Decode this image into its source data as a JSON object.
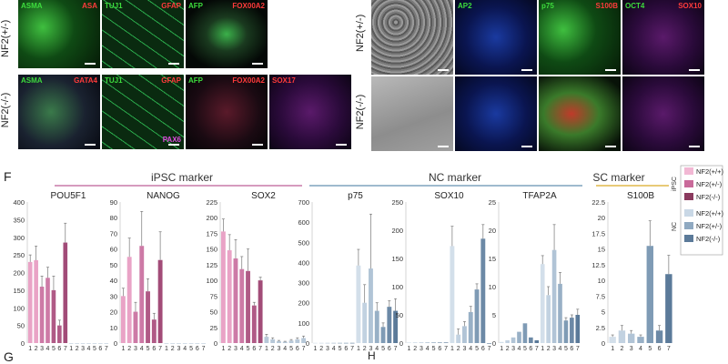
{
  "row_labels": {
    "left_top": "NF2(+/-)",
    "left_bottom": "NF2(-/-)",
    "right_top": "NF2(+/-)",
    "right_bottom": "NF2(-/-)"
  },
  "panel_letters": {
    "f": "F",
    "g": "G",
    "h": "H"
  },
  "microscopy": {
    "left_top": [
      {
        "labels": [
          {
            "text": "ASMA",
            "color": "#3ddc3d"
          },
          {
            "text": "ASA",
            "color": "#ff3b3b"
          }
        ],
        "tone": "green"
      },
      {
        "labels": [
          {
            "text": "TUJ1",
            "color": "#3ddc3d"
          },
          {
            "text": "GFAP",
            "color": "#ff3b3b"
          }
        ],
        "tone": "green-net"
      },
      {
        "labels": [
          {
            "text": "AFP",
            "color": "#3ddc3d"
          },
          {
            "text": "FOX00A2",
            "color": "#ff3b3b"
          }
        ],
        "tone": "dark-green"
      }
    ],
    "left_bottom": [
      {
        "labels": [
          {
            "text": "ASMA",
            "color": "#3ddc3d"
          },
          {
            "text": "GATA4",
            "color": "#ff3b3b"
          }
        ],
        "tone": "mixed"
      },
      {
        "labels": [
          {
            "text": "TUJ1",
            "color": "#3ddc3d"
          },
          {
            "text": "GFAP",
            "color": "#ff3b3b"
          },
          {
            "text": "PAX6",
            "color": "#e04ce0"
          }
        ],
        "tone": "green-net"
      },
      {
        "labels": [
          {
            "text": "AFP",
            "color": "#3ddc3d"
          },
          {
            "text": "FOX00A2",
            "color": "#ff3b3b"
          }
        ],
        "tone": "dark-red"
      },
      {
        "labels": [
          {
            "text": "SOX17",
            "color": "#ff3b3b"
          }
        ],
        "tone": "purple"
      }
    ],
    "right_top": [
      {
        "labels": [],
        "tone": "phase"
      },
      {
        "labels": [
          {
            "text": "AP2",
            "color": "#3ddc3d"
          }
        ],
        "tone": "blue-cyan"
      },
      {
        "labels": [
          {
            "text": "p75",
            "color": "#3ddc3d"
          },
          {
            "text": "S100B",
            "color": "#ff3b3b"
          }
        ],
        "tone": "green"
      },
      {
        "labels": [
          {
            "text": "OCT4",
            "color": "#3ddc3d"
          },
          {
            "text": "SOX10",
            "color": "#ff3b3b"
          }
        ],
        "tone": "purple"
      }
    ],
    "right_bottom": [
      {
        "labels": [],
        "tone": "phase2"
      },
      {
        "labels": [],
        "tone": "blue-cyan"
      },
      {
        "labels": [],
        "tone": "red-green"
      },
      {
        "labels": [],
        "tone": "purple"
      }
    ]
  },
  "group_headers": [
    {
      "text": "iPSC marker",
      "color": "#c97aa8"
    },
    {
      "text": "NC marker",
      "color": "#7fa3bd"
    },
    {
      "text": "SC marker",
      "color": "#e0b94a"
    }
  ],
  "legend": {
    "group_ipsc": "iPSC",
    "group_nc": "NC",
    "entries": [
      {
        "label": "NF2(+/+)",
        "color": "#f2b8d4"
      },
      {
        "label": "NF2(+/-)",
        "color": "#c96a9a"
      },
      {
        "label": "NF2(-/-)",
        "color": "#8a3a5e"
      },
      {
        "label": "NF2(+/+)",
        "color": "#c9d8e6"
      },
      {
        "label": "NF2(+/-)",
        "color": "#8fa9c1"
      },
      {
        "label": "NF2(-/-)",
        "color": "#5b7a99"
      }
    ]
  },
  "chart_data": [
    {
      "type": "bar",
      "title": "POU5F1",
      "categories": [
        "1",
        "2",
        "3",
        "4",
        "5",
        "6",
        "7"
      ],
      "ylim": [
        0,
        400
      ],
      "yticks": [
        0,
        50,
        100,
        150,
        200,
        250,
        300,
        350,
        400
      ],
      "values": [
        230,
        235,
        160,
        185,
        150,
        50,
        285
      ],
      "errors": [
        20,
        40,
        30,
        30,
        40,
        15,
        55
      ],
      "colors": [
        "#e9a3c6",
        "#e9a3c6",
        "#cd7aa6",
        "#cd7aa6",
        "#b05a86",
        "#b05a86",
        "#a24c78"
      ],
      "zero_tail": [
        "1",
        "2",
        "3",
        "4",
        "5",
        "6",
        "7"
      ]
    },
    {
      "type": "bar",
      "title": "NANOG",
      "categories": [
        "1",
        "2",
        "3",
        "4",
        "5",
        "6",
        "7"
      ],
      "ylim": [
        0,
        90
      ],
      "yticks": [
        0,
        10,
        20,
        30,
        40,
        50,
        60,
        70,
        80,
        90
      ],
      "values": [
        30,
        55,
        20,
        62,
        33,
        15,
        53
      ],
      "errors": [
        5,
        12,
        6,
        22,
        8,
        4,
        18
      ],
      "colors": [
        "#e9a3c6",
        "#e9a3c6",
        "#cd7aa6",
        "#cd7aa6",
        "#b05a86",
        "#b05a86",
        "#a24c78"
      ],
      "zero_tail": [
        "1",
        "2",
        "3",
        "4",
        "5",
        "6",
        "7"
      ]
    },
    {
      "type": "bar",
      "title": "SOX2",
      "categories": [
        "1",
        "2",
        "3",
        "4",
        "5",
        "6",
        "7"
      ],
      "ylim": [
        0,
        225
      ],
      "yticks": [
        0,
        25,
        50,
        75,
        100,
        125,
        150,
        175,
        200,
        225
      ],
      "values": [
        178,
        148,
        135,
        118,
        115,
        60,
        100
      ],
      "errors": [
        20,
        25,
        30,
        20,
        35,
        5,
        5
      ],
      "colors": [
        "#e9a3c6",
        "#e9a3c6",
        "#cd7aa6",
        "#cd7aa6",
        "#b05a86",
        "#b05a86",
        "#a24c78"
      ],
      "tail_values": [
        10,
        6,
        3,
        2,
        4,
        6,
        8
      ],
      "zero_tail": [
        "1",
        "2",
        "3",
        "4",
        "5",
        "6",
        "7"
      ]
    },
    {
      "type": "bar",
      "title": "p75",
      "categories": [
        "1",
        "2",
        "3",
        "4",
        "5",
        "6",
        "7"
      ],
      "ylim": [
        0,
        700
      ],
      "yticks": [
        0,
        100,
        200,
        300,
        400,
        500,
        600,
        700
      ],
      "lead_values": [
        1,
        1,
        1,
        1,
        1,
        1,
        1
      ],
      "values": [
        385,
        200,
        370,
        160,
        80,
        180,
        160
      ],
      "errors": [
        80,
        90,
        270,
        40,
        20,
        30,
        60
      ],
      "colors": [
        "#d3dfea",
        "#c2d2e1",
        "#b1c4d6",
        "#98b0c6",
        "#7f9bb5",
        "#6c89a6",
        "#5b7a99"
      ],
      "zero_tail": [
        "1",
        "2",
        "3",
        "4",
        "5",
        "6",
        "7"
      ]
    },
    {
      "type": "bar",
      "title": "SOX10",
      "categories": [
        "1",
        "2",
        "3",
        "4",
        "5",
        "6",
        "7"
      ],
      "ylim": [
        0,
        250
      ],
      "yticks": [
        0,
        50,
        100,
        150,
        200,
        250
      ],
      "lead_values": [
        1,
        1,
        1,
        1,
        1,
        1,
        1
      ],
      "values": [
        172,
        15,
        30,
        55,
        95,
        185,
        0
      ],
      "errors": [
        35,
        10,
        8,
        10,
        10,
        25,
        0
      ],
      "colors": [
        "#d3dfea",
        "#c2d2e1",
        "#b1c4d6",
        "#98b0c6",
        "#7f9bb5",
        "#6c89a6",
        "#5b7a99"
      ],
      "zero_tail": [
        "1",
        "2",
        "3",
        "4",
        "5",
        "6",
        "7"
      ]
    },
    {
      "type": "bar",
      "title": "TFAP2A",
      "categories": [
        "1",
        "2",
        "3",
        "4",
        "5",
        "6",
        "7"
      ],
      "ylim": [
        0,
        25
      ],
      "yticks": [
        0,
        5,
        10,
        15,
        20,
        25
      ],
      "lead_values": [
        0.2,
        0.5,
        1,
        2,
        3.5,
        1,
        0.5
      ],
      "values": [
        14,
        8.5,
        16.5,
        10.5,
        4,
        4.5,
        5
      ],
      "errors": [
        1.5,
        1.5,
        4.5,
        2,
        0.5,
        0.5,
        1
      ],
      "colors": [
        "#d3dfea",
        "#c2d2e1",
        "#b1c4d6",
        "#98b0c6",
        "#7f9bb5",
        "#6c89a6",
        "#5b7a99"
      ],
      "zero_tail": [
        "1",
        "2",
        "3",
        "4",
        "5",
        "6",
        "7"
      ]
    },
    {
      "type": "bar",
      "title": "S100B",
      "categories": [
        "1",
        "2",
        "3",
        "4",
        "5",
        "6",
        "7"
      ],
      "ylim": [
        0,
        22.5
      ],
      "yticks": [
        0,
        2.5,
        5,
        7.5,
        10,
        12.5,
        15,
        17.5,
        20,
        22.5
      ],
      "values": [
        1,
        2,
        1.5,
        1,
        15.5,
        2,
        11
      ],
      "errors": [
        0.3,
        0.8,
        0.5,
        0.3,
        4,
        0.8,
        3
      ],
      "colors": [
        "#d3dfea",
        "#c2d2e1",
        "#b1c4d6",
        "#98b0c6",
        "#7f9bb5",
        "#6c89a6",
        "#5b7a99"
      ],
      "zero_tail": []
    }
  ]
}
